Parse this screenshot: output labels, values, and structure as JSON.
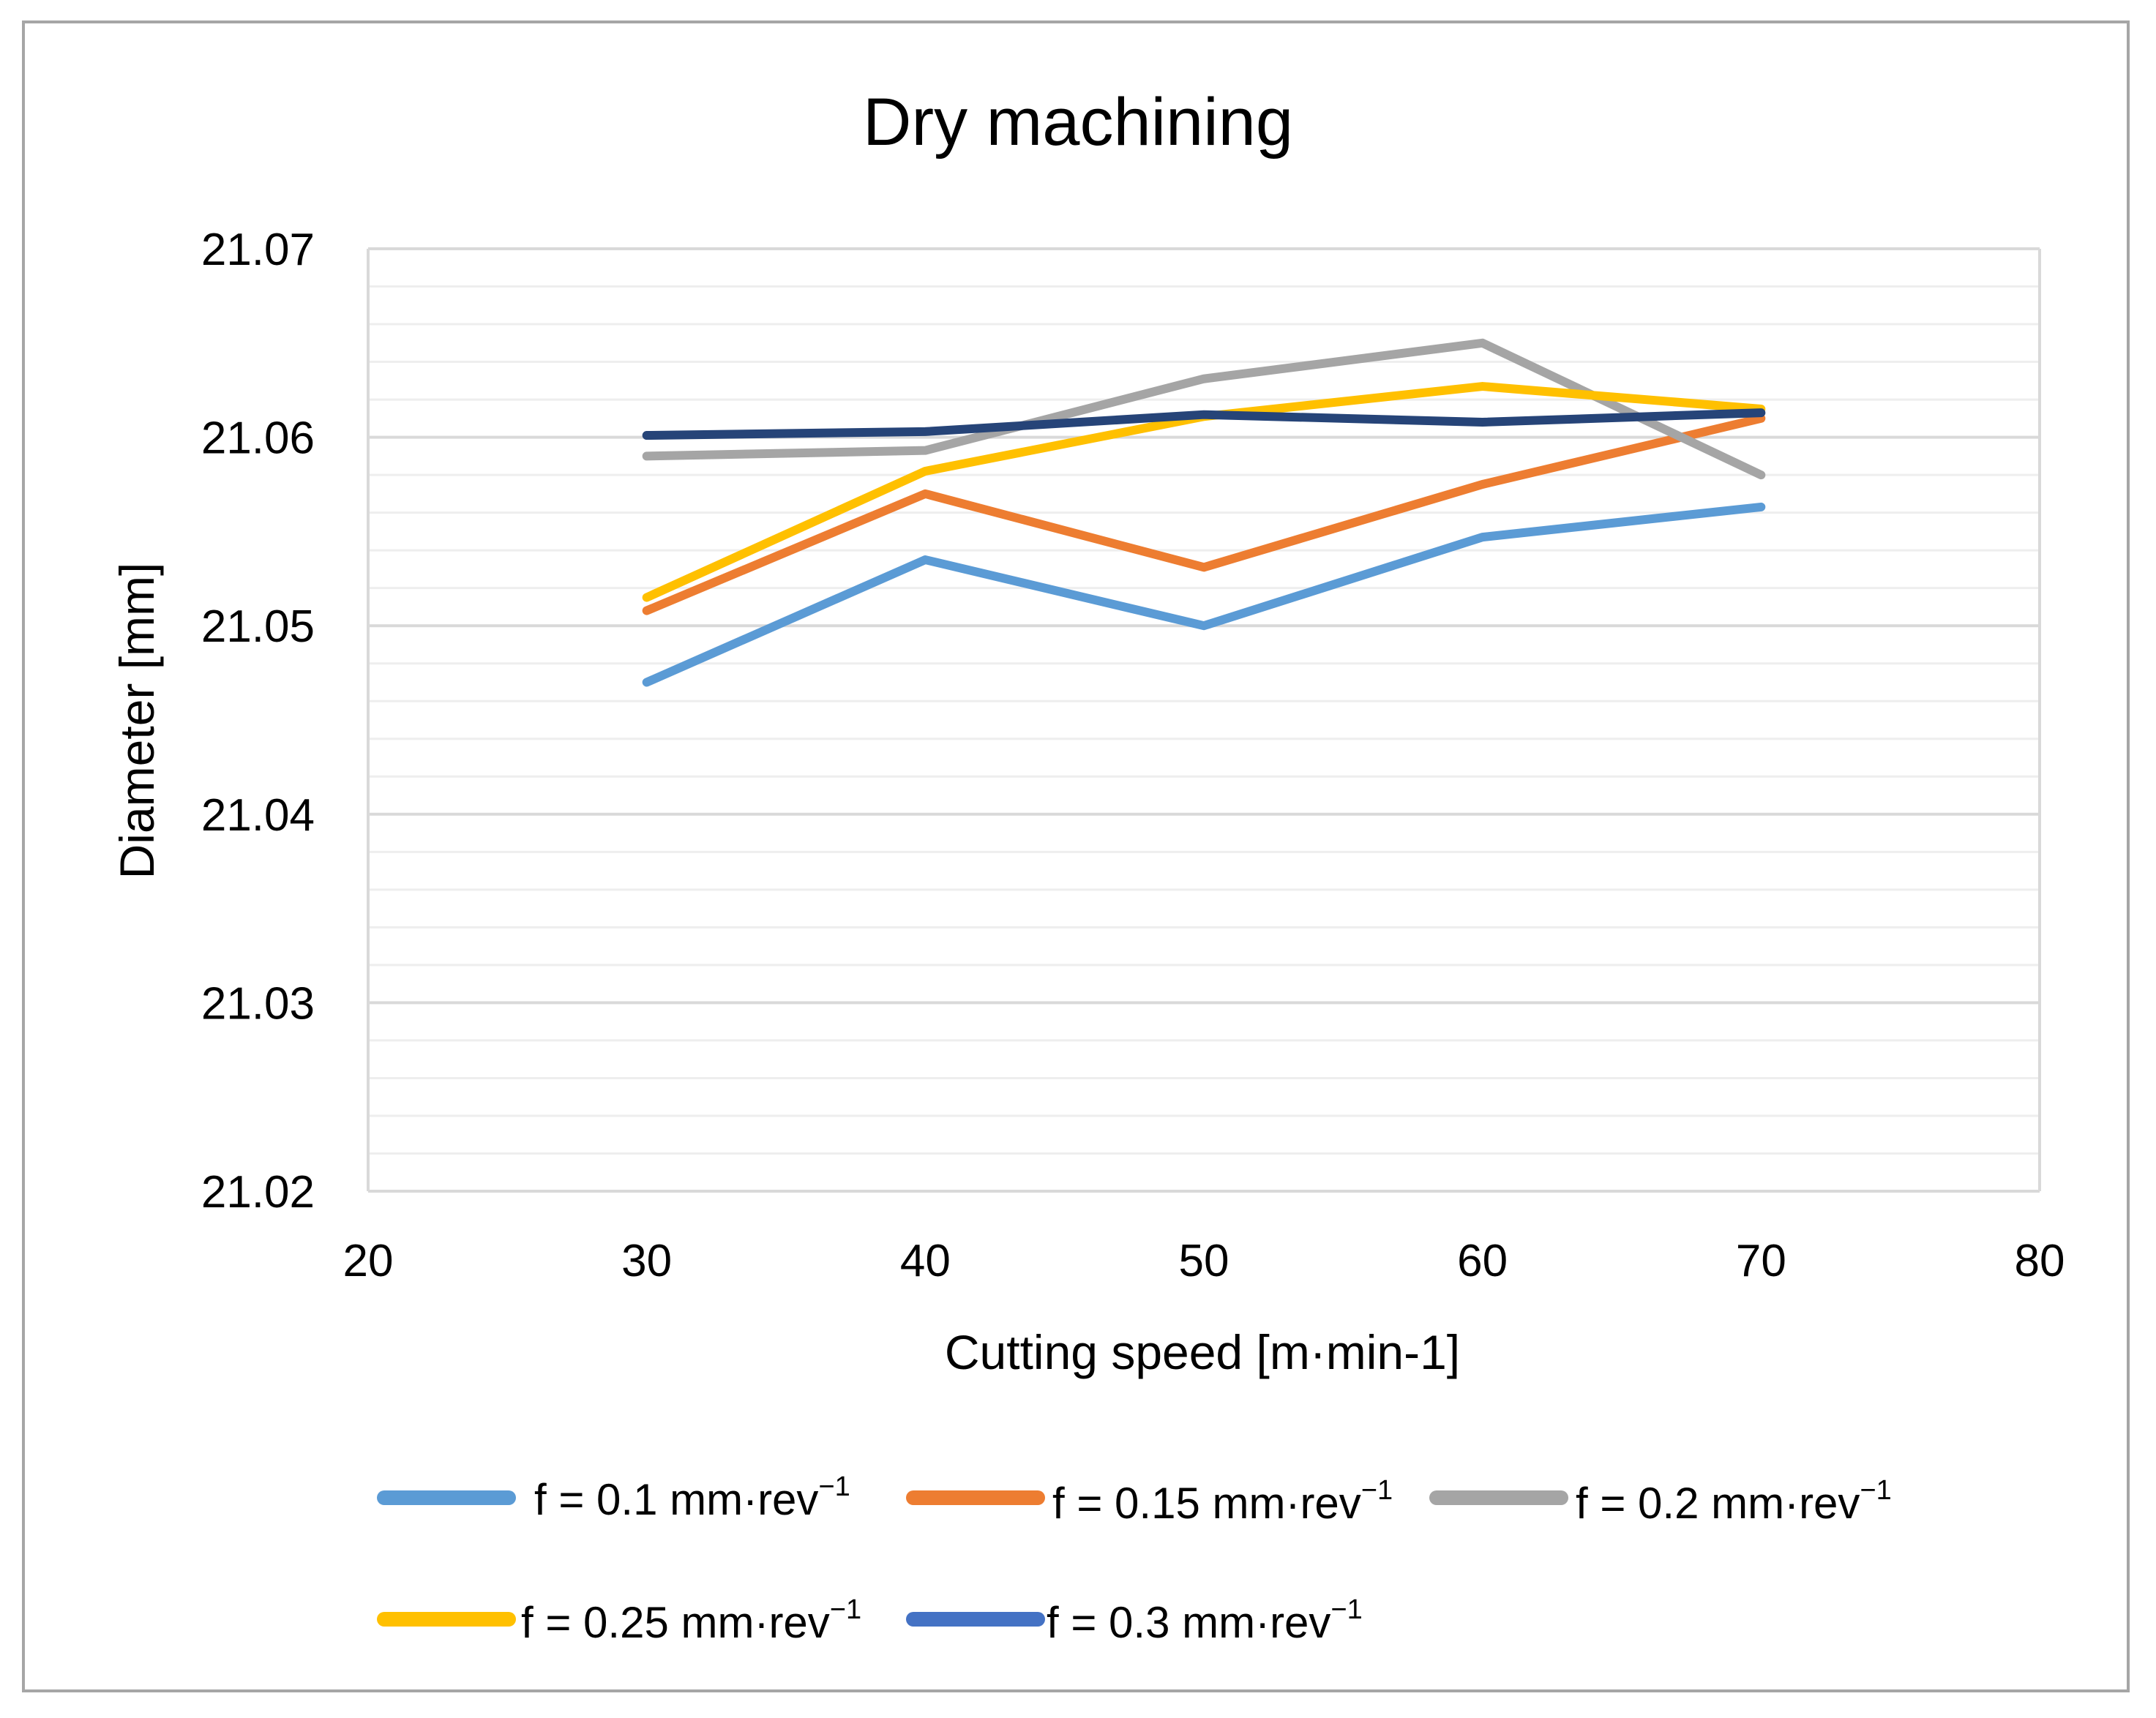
{
  "chart_data": {
    "type": "line",
    "title": "Dry machining",
    "xlabel": "Cutting speed [m·min-1]",
    "ylabel": "Diameter [mm]",
    "xlim": [
      20,
      80
    ],
    "ylim": [
      21.02,
      21.07
    ],
    "xticks": [
      "20",
      "30",
      "40",
      "50",
      "60",
      "70",
      "80"
    ],
    "yticks": [
      "21.02",
      "21.03",
      "21.04",
      "21.05",
      "21.06",
      "21.07"
    ],
    "grid": true,
    "legend_position": "bottom",
    "x": [
      30,
      40,
      50,
      60,
      70
    ],
    "series": [
      {
        "name": "f = 0.1 mm·rev",
        "exp": "−1",
        "color": "#5b9bd5",
        "values": [
          21.047,
          21.0535,
          21.05,
          21.0547,
          21.0563
        ]
      },
      {
        "name": "f = 0.15 mm·rev",
        "exp": "−1",
        "color": "#ed7d31",
        "values": [
          21.0508,
          21.057,
          21.0531,
          21.0575,
          21.061
        ]
      },
      {
        "name": "f = 0.2 mm·rev",
        "exp": "−1",
        "color": "#a5a5a5",
        "values": [
          21.059,
          21.0593,
          21.0631,
          21.065,
          21.058
        ]
      },
      {
        "name": "f = 0.25 mm·rev",
        "exp": "−1",
        "color": "#ffc000",
        "values": [
          21.0515,
          21.0582,
          21.0611,
          21.0627,
          21.0615
        ]
      },
      {
        "name": "f = 0.3 mm·rev",
        "exp": "−1",
        "color": "#264478",
        "legend_color": "#4472c4",
        "values": [
          21.0601,
          21.0603,
          21.0612,
          21.0608,
          21.0613
        ]
      }
    ]
  }
}
